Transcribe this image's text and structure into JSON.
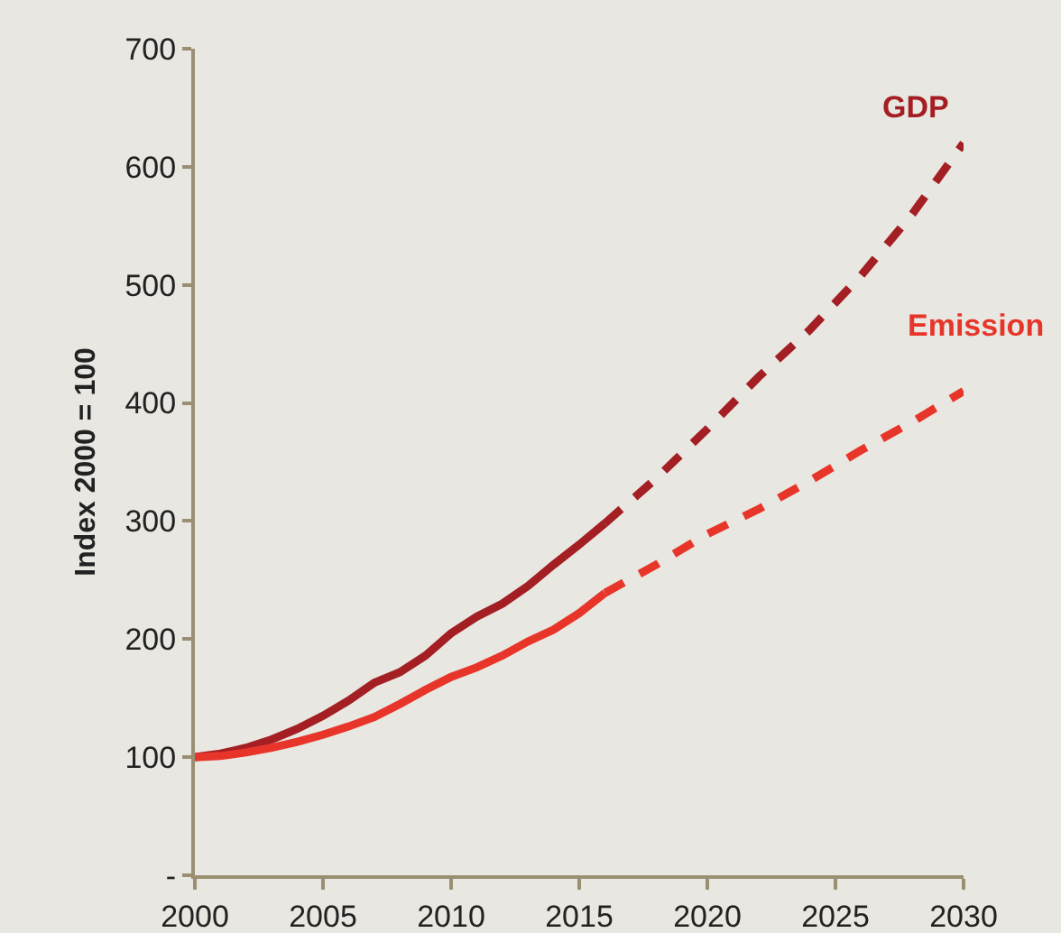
{
  "chart_data": {
    "type": "line",
    "ylabel": "Index 2000 = 100",
    "xlim": [
      2000,
      2030
    ],
    "xticks": [
      2000,
      2005,
      2010,
      2015,
      2020,
      2025,
      2030
    ],
    "ylim": [
      0,
      700
    ],
    "yticks": [
      {
        "value": 0,
        "label": "-"
      },
      100,
      200,
      300,
      400,
      500,
      600,
      700
    ],
    "grid": false,
    "legend": false,
    "marker": "none",
    "series": [
      {
        "color": "#a31f24",
        "line_style": "solid",
        "x": [
          2000,
          2001,
          2002,
          2003,
          2004,
          2005,
          2006,
          2007,
          2008,
          2009,
          2010,
          2011,
          2012,
          2013,
          2014,
          2015,
          2016
        ],
        "values": [
          100,
          103,
          108,
          115,
          124,
          135,
          148,
          163,
          172,
          186,
          205,
          219,
          230,
          245,
          263,
          280,
          298
        ]
      },
      {
        "name": "GDP",
        "color": "#a31f24",
        "line_style": "dashed",
        "x": [
          2016,
          2018,
          2020,
          2022,
          2024,
          2026,
          2028,
          2030
        ],
        "values": [
          298,
          336,
          378,
          422,
          462,
          508,
          560,
          620
        ]
      },
      {
        "color": "#e8352a",
        "line_style": "solid",
        "x": [
          2000,
          2001,
          2002,
          2003,
          2004,
          2005,
          2006,
          2007,
          2008,
          2009,
          2010,
          2011,
          2012,
          2013,
          2014,
          2015,
          2016
        ],
        "values": [
          100,
          101,
          104,
          108,
          113,
          119,
          126,
          134,
          145,
          157,
          168,
          176,
          186,
          198,
          208,
          222,
          239
        ]
      },
      {
        "name": "Emission",
        "color": "#e8352a",
        "line_style": "dashed",
        "x": [
          2016,
          2018,
          2020,
          2022,
          2024,
          2026,
          2028,
          2030
        ],
        "values": [
          239,
          263,
          289,
          310,
          334,
          360,
          384,
          410
        ]
      }
    ]
  }
}
